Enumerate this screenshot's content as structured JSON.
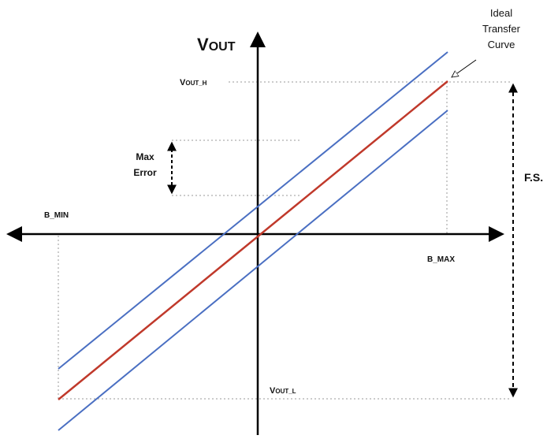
{
  "labels": {
    "y_axis_main": "V",
    "y_axis_sub": "OUT",
    "vout_h_main": "V",
    "vout_h_sub": "OUT_H",
    "vout_l_main": "V",
    "vout_l_sub": "OUT_L",
    "b_min": "B_MIN",
    "b_max": "B_MAX",
    "fs": "F.S.",
    "max_error_line1": "Max",
    "max_error_line2": "Error",
    "ideal_line1": "Ideal",
    "ideal_line2": "Transfer",
    "ideal_line3": "Curve"
  },
  "colors": {
    "axis": "#000000",
    "ideal_curve": "#c0392b",
    "error_bounds": "#4a6fc2",
    "guide_lines": "#9a9a9a"
  }
}
